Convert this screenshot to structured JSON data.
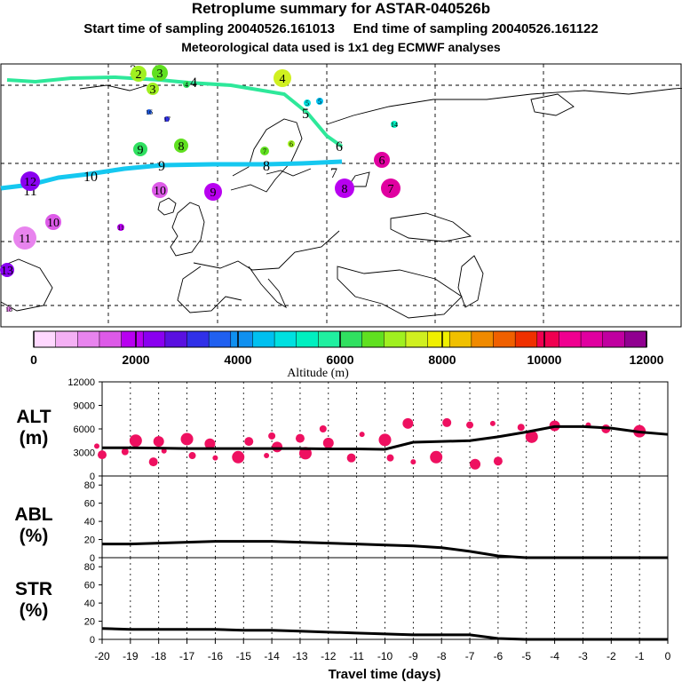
{
  "header": {
    "title": "Retroplume summary for ASTAR-040526b",
    "sampling_line": "Start time of sampling 20040526.161013     End time of sampling 20040526.161122",
    "met_line": "Meteorological data used is 1x1 deg ECMWF analyses"
  },
  "colors": {
    "track_upper": "#2ee89a",
    "track_lower": "#15c8f0",
    "scatter": "#ee1060",
    "line": "#000000",
    "palette": [
      "#ffd8ff",
      "#f4b0f4",
      "#e884ee",
      "#dd5ae8",
      "#b800f0",
      "#8a00f0",
      "#5a10e0",
      "#3030e8",
      "#2060f0",
      "#1090f0",
      "#00c0f0",
      "#00e0e0",
      "#00f0c0",
      "#20f0a0",
      "#30e060",
      "#60e020",
      "#a0f020",
      "#d0f020",
      "#f0f000",
      "#f0c000",
      "#f08a00",
      "#f06000",
      "#f03000",
      "#f00050",
      "#f00090",
      "#e000a0",
      "#c000a0",
      "#900090"
    ]
  },
  "map": {
    "track_upper_labels": [
      "2",
      "3",
      "4",
      "4",
      "5",
      "6"
    ],
    "track_lower_labels": [
      "12",
      "11",
      "10",
      "9",
      "8",
      "7"
    ],
    "markers": [
      {
        "label": "2",
        "alt": 7000
      },
      {
        "label": "3",
        "alt": 6500
      },
      {
        "label": "3",
        "alt": 7000
      },
      {
        "label": "4",
        "alt": 6000
      },
      {
        "label": "4",
        "alt": 7500
      },
      {
        "label": "5",
        "alt": 5000
      },
      {
        "label": "5",
        "alt": 4500
      },
      {
        "label": "6",
        "alt": 11000
      },
      {
        "label": "7",
        "alt": 11000
      },
      {
        "label": "8",
        "alt": 2000
      },
      {
        "label": "9",
        "alt": 2000
      },
      {
        "label": "10",
        "alt": 1500
      },
      {
        "label": "11",
        "alt": 1000
      },
      {
        "label": "12",
        "alt": 2500
      },
      {
        "label": "13",
        "alt": 2500
      },
      {
        "label": "14",
        "alt": 5500
      },
      {
        "label": "16",
        "alt": 3500
      },
      {
        "label": "17",
        "alt": 3000
      },
      {
        "label": "18",
        "alt": 1000
      },
      {
        "label": "10",
        "alt": 1500
      },
      {
        "label": "11",
        "alt": 2000
      },
      {
        "label": "8",
        "alt": 6500
      },
      {
        "label": "9",
        "alt": 6000
      },
      {
        "label": "7",
        "alt": 6500
      },
      {
        "label": "6",
        "alt": 7000
      }
    ]
  },
  "colorbar": {
    "tick_labels": [
      "0",
      "2000",
      "4000",
      "6000",
      "8000",
      "10000",
      "12000"
    ],
    "label": "Altitude (m)"
  },
  "chart_data": [
    {
      "type": "line",
      "panel": "ALT",
      "ylabel": "ALT\n(m)",
      "ylim": [
        0,
        12000
      ],
      "yticks": [
        0,
        3000,
        6000,
        9000,
        12000
      ],
      "x": [
        -20,
        -19,
        -18,
        -17,
        -16,
        -15,
        -14,
        -13,
        -12,
        -11,
        -10,
        -9,
        -8,
        -7,
        -6,
        -5,
        -4,
        -3,
        -2,
        -1,
        0
      ],
      "series": [
        {
          "name": "mean altitude",
          "values": [
            3600,
            3600,
            3550,
            3500,
            3500,
            3500,
            3500,
            3500,
            3450,
            3450,
            3400,
            4300,
            4400,
            4500,
            5000,
            5600,
            6300,
            6300,
            6100,
            5600,
            5300
          ]
        }
      ],
      "scatter": [
        {
          "x": -20,
          "y": 3800
        },
        {
          "x": -20,
          "y": 2700
        },
        {
          "x": -19,
          "y": 4500
        },
        {
          "x": -19,
          "y": 3100
        },
        {
          "x": -18,
          "y": 4400
        },
        {
          "x": -18,
          "y": 3200
        },
        {
          "x": -18,
          "y": 1800
        },
        {
          "x": -17,
          "y": 4700
        },
        {
          "x": -17,
          "y": 2600
        },
        {
          "x": -16,
          "y": 4100
        },
        {
          "x": -16,
          "y": 2300
        },
        {
          "x": -15,
          "y": 4400
        },
        {
          "x": -15,
          "y": 2400
        },
        {
          "x": -14,
          "y": 5100
        },
        {
          "x": -14,
          "y": 3700
        },
        {
          "x": -14,
          "y": 2600
        },
        {
          "x": -13,
          "y": 4800
        },
        {
          "x": -13,
          "y": 2900
        },
        {
          "x": -12,
          "y": 6000
        },
        {
          "x": -12,
          "y": 4200
        },
        {
          "x": -11,
          "y": 5300
        },
        {
          "x": -11,
          "y": 2300
        },
        {
          "x": -10,
          "y": 4600
        },
        {
          "x": -10,
          "y": 2300
        },
        {
          "x": -9,
          "y": 6700
        },
        {
          "x": -9,
          "y": 1800
        },
        {
          "x": -8,
          "y": 6800
        },
        {
          "x": -8,
          "y": 2400
        },
        {
          "x": -7,
          "y": 6500
        },
        {
          "x": -7,
          "y": 1500
        },
        {
          "x": -6,
          "y": 6700
        },
        {
          "x": -6,
          "y": 1900
        },
        {
          "x": -5,
          "y": 5000
        },
        {
          "x": -5,
          "y": 6200
        },
        {
          "x": -4,
          "y": 6400
        },
        {
          "x": -3,
          "y": 6500
        },
        {
          "x": -2,
          "y": 6000
        },
        {
          "x": -1,
          "y": 5700
        }
      ]
    },
    {
      "type": "line",
      "panel": "ABL",
      "ylabel": "ABL\n(%)",
      "ylim": [
        0,
        90
      ],
      "yticks": [
        0,
        20,
        40,
        60,
        80
      ],
      "x": [
        -20,
        -19,
        -18,
        -17,
        -16,
        -15,
        -14,
        -13,
        -12,
        -11,
        -10,
        -9,
        -8,
        -7,
        -6,
        -5,
        -4,
        -3,
        -2,
        -1,
        0
      ],
      "series": [
        {
          "name": "ABL fraction",
          "values": [
            15,
            15,
            16,
            17,
            18,
            18,
            18,
            17,
            16,
            15,
            14,
            13,
            11,
            7,
            2,
            0,
            0,
            0,
            0,
            0,
            0
          ]
        }
      ]
    },
    {
      "type": "line",
      "panel": "STR",
      "ylabel": "STR\n(%)",
      "ylim": [
        0,
        90
      ],
      "yticks": [
        0,
        20,
        40,
        60,
        80
      ],
      "x": [
        -20,
        -19,
        -18,
        -17,
        -16,
        -15,
        -14,
        -13,
        -12,
        -11,
        -10,
        -9,
        -8,
        -7,
        -6,
        -5,
        -4,
        -3,
        -2,
        -1,
        0
      ],
      "series": [
        {
          "name": "stratospheric fraction",
          "values": [
            12,
            11,
            11,
            11,
            11,
            10,
            10,
            9,
            8,
            7,
            6,
            5,
            5,
            5,
            1,
            0,
            0,
            0,
            0,
            0,
            0
          ]
        }
      ],
      "xlabel": "Travel time (days)",
      "xtick_labels": [
        "-20",
        "-19",
        "-18",
        "-17",
        "-16",
        "-15",
        "-14",
        "-13",
        "-12",
        "-11",
        "-10",
        "-9",
        "-8",
        "-7",
        "-6",
        "-5",
        "-4",
        "-3",
        "-2",
        "-1",
        "0"
      ]
    }
  ]
}
